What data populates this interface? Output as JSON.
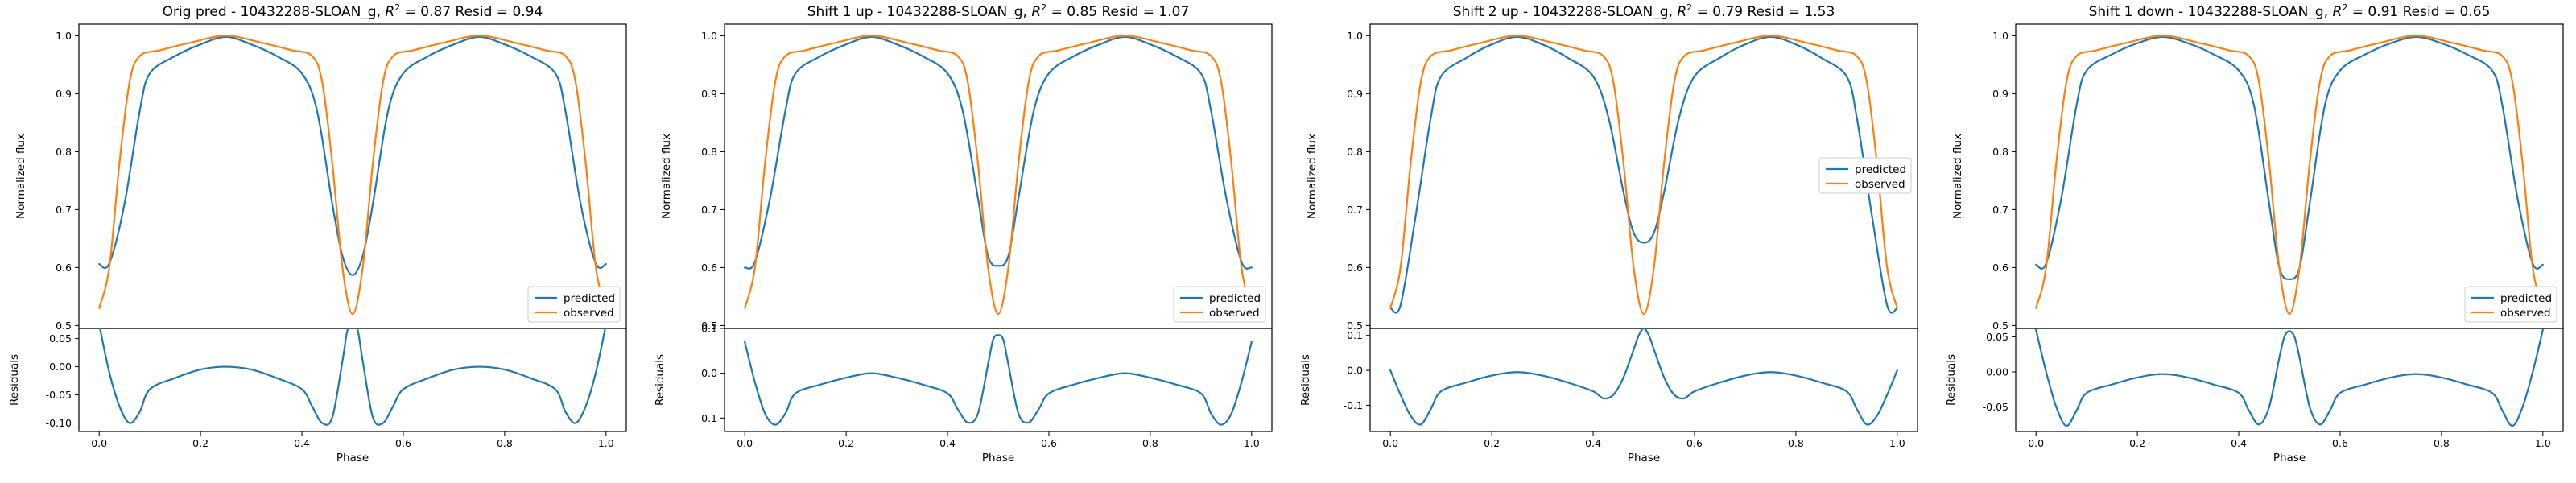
{
  "colors": {
    "predicted": "#1f77b4",
    "observed": "#ff7f0e"
  },
  "chart_data": [
    {
      "type": "line",
      "title": "Orig pred - 10432288-SLOAN_g, R² = 0.87 Resid = 0.94",
      "title_parts": [
        "Orig pred - 10432288-SLOAN_g, ",
        "R",
        "2",
        " = 0.87 Resid = 0.94"
      ],
      "xlabel": "Phase",
      "ylabel": "Normalized flux",
      "resid_ylabel": "Residuals",
      "xlim": [
        -0.04,
        1.04
      ],
      "ylim": [
        0.495,
        1.02
      ],
      "resid_ylim": [
        -0.115,
        0.068
      ],
      "xticks": [
        "0.0",
        "0.2",
        "0.4",
        "0.6",
        "0.8",
        "1.0"
      ],
      "yticks": [
        "0.5",
        "0.6",
        "0.7",
        "0.8",
        "0.9",
        "1.0"
      ],
      "resid_yticks": [
        "-0.10",
        "-0.05",
        "0.00",
        "0.05"
      ],
      "legend_position": "lower right",
      "series": [
        {
          "name": "predicted",
          "x": [
            0.0,
            0.02,
            0.05,
            0.08,
            0.1,
            0.15,
            0.2,
            0.25,
            0.3,
            0.35,
            0.4,
            0.43,
            0.46,
            0.48,
            0.5,
            0.52,
            0.54,
            0.57,
            0.6,
            0.65,
            0.7,
            0.75,
            0.8,
            0.85,
            0.9,
            0.92,
            0.95,
            0.98,
            1.0
          ],
          "y": [
            0.606,
            0.607,
            0.71,
            0.87,
            0.935,
            0.965,
            0.985,
            0.998,
            0.985,
            0.965,
            0.935,
            0.87,
            0.71,
            0.62,
            0.587,
            0.62,
            0.71,
            0.87,
            0.935,
            0.965,
            0.985,
            0.998,
            0.985,
            0.965,
            0.935,
            0.87,
            0.71,
            0.607,
            0.606
          ]
        },
        {
          "name": "observed",
          "x": [
            0.0,
            0.02,
            0.04,
            0.06,
            0.08,
            0.12,
            0.18,
            0.25,
            0.32,
            0.38,
            0.42,
            0.44,
            0.46,
            0.48,
            0.5,
            0.52,
            0.54,
            0.56,
            0.58,
            0.62,
            0.68,
            0.75,
            0.82,
            0.88,
            0.92,
            0.94,
            0.96,
            0.98,
            1.0
          ],
          "y": [
            0.53,
            0.6,
            0.78,
            0.92,
            0.965,
            0.975,
            0.988,
            1.0,
            0.988,
            0.975,
            0.965,
            0.92,
            0.78,
            0.6,
            0.52,
            0.6,
            0.78,
            0.92,
            0.965,
            0.975,
            0.988,
            1.0,
            0.988,
            0.975,
            0.965,
            0.92,
            0.78,
            0.6,
            0.53
          ]
        }
      ],
      "residuals": {
        "x": [
          0.0,
          0.02,
          0.04,
          0.06,
          0.08,
          0.1,
          0.15,
          0.2,
          0.25,
          0.3,
          0.35,
          0.4,
          0.42,
          0.44,
          0.46,
          0.48,
          0.49,
          0.5,
          0.51,
          0.52,
          0.54,
          0.56,
          0.58,
          0.6,
          0.65,
          0.7,
          0.75,
          0.8,
          0.85,
          0.9,
          0.92,
          0.94,
          0.96,
          0.98,
          1.0
        ],
        "y": [
          0.075,
          -0.01,
          -0.07,
          -0.1,
          -0.08,
          -0.04,
          -0.02,
          -0.005,
          0.0,
          -0.005,
          -0.02,
          -0.04,
          -0.07,
          -0.1,
          -0.09,
          0.01,
          0.065,
          0.07,
          0.065,
          0.01,
          -0.09,
          -0.1,
          -0.07,
          -0.04,
          -0.02,
          -0.005,
          0.0,
          -0.005,
          -0.02,
          -0.04,
          -0.08,
          -0.1,
          -0.07,
          -0.01,
          0.075
        ]
      }
    },
    {
      "type": "line",
      "title": "Shift 1 up - 10432288-SLOAN_g, R² = 0.85 Resid = 1.07",
      "title_parts": [
        "Shift 1 up - 10432288-SLOAN_g, ",
        "R",
        "2",
        " = 0.85 Resid = 1.07"
      ],
      "xlabel": "Phase",
      "ylabel": "Normalized flux",
      "resid_ylabel": "Residuals",
      "xlim": [
        -0.04,
        1.04
      ],
      "ylim": [
        0.495,
        1.02
      ],
      "resid_ylim": [
        -0.13,
        0.1
      ],
      "xticks": [
        "0.0",
        "0.2",
        "0.4",
        "0.6",
        "0.8",
        "1.0"
      ],
      "yticks": [
        "0.5",
        "0.6",
        "0.7",
        "0.8",
        "0.9",
        "1.0"
      ],
      "resid_yticks": [
        "-0.1",
        "0.0",
        "0.1"
      ],
      "legend_position": "lower right",
      "series": [
        {
          "name": "predicted",
          "x": [
            0.0,
            0.02,
            0.05,
            0.08,
            0.1,
            0.15,
            0.2,
            0.25,
            0.3,
            0.35,
            0.4,
            0.43,
            0.46,
            0.48,
            0.5,
            0.52,
            0.54,
            0.57,
            0.6,
            0.65,
            0.7,
            0.75,
            0.8,
            0.85,
            0.9,
            0.92,
            0.95,
            0.98,
            1.0
          ],
          "y": [
            0.6,
            0.61,
            0.72,
            0.87,
            0.935,
            0.965,
            0.985,
            0.998,
            0.985,
            0.965,
            0.935,
            0.87,
            0.72,
            0.62,
            0.603,
            0.62,
            0.72,
            0.87,
            0.935,
            0.965,
            0.985,
            0.998,
            0.985,
            0.965,
            0.935,
            0.87,
            0.72,
            0.61,
            0.6
          ]
        },
        {
          "name": "observed",
          "x": [
            0.0,
            0.02,
            0.04,
            0.06,
            0.08,
            0.12,
            0.18,
            0.25,
            0.32,
            0.38,
            0.42,
            0.44,
            0.46,
            0.48,
            0.5,
            0.52,
            0.54,
            0.56,
            0.58,
            0.62,
            0.68,
            0.75,
            0.82,
            0.88,
            0.92,
            0.94,
            0.96,
            0.98,
            1.0
          ],
          "y": [
            0.53,
            0.6,
            0.78,
            0.92,
            0.965,
            0.975,
            0.988,
            1.0,
            0.988,
            0.975,
            0.965,
            0.92,
            0.78,
            0.6,
            0.52,
            0.6,
            0.78,
            0.92,
            0.965,
            0.975,
            0.988,
            1.0,
            0.988,
            0.975,
            0.965,
            0.92,
            0.78,
            0.6,
            0.53
          ]
        }
      ],
      "residuals": {
        "x": [
          0.0,
          0.02,
          0.04,
          0.06,
          0.08,
          0.1,
          0.15,
          0.2,
          0.25,
          0.3,
          0.35,
          0.4,
          0.42,
          0.44,
          0.46,
          0.48,
          0.49,
          0.5,
          0.51,
          0.52,
          0.54,
          0.56,
          0.58,
          0.6,
          0.65,
          0.7,
          0.75,
          0.8,
          0.85,
          0.9,
          0.92,
          0.94,
          0.96,
          0.98,
          1.0
        ],
        "y": [
          0.07,
          -0.02,
          -0.09,
          -0.115,
          -0.09,
          -0.045,
          -0.025,
          -0.01,
          0.0,
          -0.01,
          -0.025,
          -0.045,
          -0.08,
          -0.11,
          -0.09,
          0.02,
          0.075,
          0.085,
          0.075,
          0.02,
          -0.09,
          -0.11,
          -0.08,
          -0.045,
          -0.025,
          -0.01,
          0.0,
          -0.01,
          -0.025,
          -0.045,
          -0.09,
          -0.115,
          -0.09,
          -0.02,
          0.07
        ]
      }
    },
    {
      "type": "line",
      "title": "Shift 2 up - 10432288-SLOAN_g, R² = 0.79 Resid = 1.53",
      "title_parts": [
        "Shift 2 up - 10432288-SLOAN_g, ",
        "R",
        "2",
        " = 0.79 Resid = 1.53"
      ],
      "xlabel": "Phase",
      "ylabel": "Normalized flux",
      "resid_ylabel": "Residuals",
      "xlim": [
        -0.04,
        1.04
      ],
      "ylim": [
        0.495,
        1.02
      ],
      "resid_ylim": [
        -0.175,
        0.12
      ],
      "xticks": [
        "0.0",
        "0.2",
        "0.4",
        "0.6",
        "0.8",
        "1.0"
      ],
      "yticks": [
        "0.5",
        "0.6",
        "0.7",
        "0.8",
        "0.9",
        "1.0"
      ],
      "resid_yticks": [
        "-0.1",
        "0.0",
        "0.1"
      ],
      "legend_position": "center right",
      "series": [
        {
          "name": "predicted",
          "x": [
            0.0,
            0.02,
            0.05,
            0.08,
            0.1,
            0.15,
            0.2,
            0.25,
            0.3,
            0.35,
            0.4,
            0.43,
            0.46,
            0.48,
            0.5,
            0.52,
            0.54,
            0.57,
            0.6,
            0.65,
            0.7,
            0.75,
            0.8,
            0.85,
            0.9,
            0.92,
            0.95,
            0.98,
            1.0
          ],
          "y": [
            0.53,
            0.535,
            0.69,
            0.86,
            0.93,
            0.962,
            0.985,
            0.998,
            0.985,
            0.962,
            0.93,
            0.86,
            0.73,
            0.66,
            0.643,
            0.66,
            0.73,
            0.86,
            0.93,
            0.962,
            0.985,
            0.998,
            0.985,
            0.962,
            0.93,
            0.86,
            0.69,
            0.535,
            0.53
          ]
        },
        {
          "name": "observed",
          "x": [
            0.0,
            0.02,
            0.04,
            0.06,
            0.08,
            0.12,
            0.18,
            0.25,
            0.32,
            0.38,
            0.42,
            0.44,
            0.46,
            0.48,
            0.5,
            0.52,
            0.54,
            0.56,
            0.58,
            0.62,
            0.68,
            0.75,
            0.82,
            0.88,
            0.92,
            0.94,
            0.96,
            0.98,
            1.0
          ],
          "y": [
            0.53,
            0.6,
            0.78,
            0.92,
            0.965,
            0.975,
            0.988,
            1.0,
            0.988,
            0.975,
            0.965,
            0.92,
            0.78,
            0.6,
            0.52,
            0.6,
            0.78,
            0.92,
            0.965,
            0.975,
            0.988,
            1.0,
            0.988,
            0.975,
            0.965,
            0.92,
            0.78,
            0.6,
            0.53
          ]
        }
      ],
      "residuals": {
        "x": [
          0.0,
          0.02,
          0.04,
          0.06,
          0.08,
          0.1,
          0.15,
          0.2,
          0.25,
          0.3,
          0.35,
          0.4,
          0.42,
          0.44,
          0.46,
          0.48,
          0.49,
          0.5,
          0.51,
          0.52,
          0.54,
          0.56,
          0.58,
          0.6,
          0.65,
          0.7,
          0.75,
          0.8,
          0.85,
          0.9,
          0.92,
          0.94,
          0.96,
          0.98,
          1.0
        ],
        "y": [
          0.0,
          -0.07,
          -0.13,
          -0.155,
          -0.11,
          -0.06,
          -0.035,
          -0.015,
          -0.005,
          -0.015,
          -0.035,
          -0.06,
          -0.08,
          -0.07,
          -0.02,
          0.06,
          0.1,
          0.12,
          0.1,
          0.06,
          -0.02,
          -0.07,
          -0.08,
          -0.06,
          -0.035,
          -0.015,
          -0.005,
          -0.015,
          -0.035,
          -0.06,
          -0.11,
          -0.155,
          -0.13,
          -0.07,
          0.0
        ]
      }
    },
    {
      "type": "line",
      "title": "Shift 1 down - 10432288-SLOAN_g, R² = 0.91 Resid = 0.65",
      "title_parts": [
        "Shift 1 down - 10432288-SLOAN_g, ",
        "R",
        "2",
        " = 0.91 Resid = 0.65"
      ],
      "xlabel": "Phase",
      "ylabel": "Normalized flux",
      "resid_ylabel": "Residuals",
      "xlim": [
        -0.04,
        1.04
      ],
      "ylim": [
        0.495,
        1.02
      ],
      "resid_ylim": [
        -0.085,
        0.062
      ],
      "xticks": [
        "0.0",
        "0.2",
        "0.4",
        "0.6",
        "0.8",
        "1.0"
      ],
      "yticks": [
        "0.5",
        "0.6",
        "0.7",
        "0.8",
        "0.9",
        "1.0"
      ],
      "resid_yticks": [
        "-0.05",
        "0.00",
        "0.05"
      ],
      "legend_position": "lower right",
      "series": [
        {
          "name": "predicted",
          "x": [
            0.0,
            0.02,
            0.05,
            0.08,
            0.1,
            0.15,
            0.2,
            0.25,
            0.3,
            0.35,
            0.4,
            0.43,
            0.46,
            0.48,
            0.5,
            0.52,
            0.54,
            0.57,
            0.6,
            0.65,
            0.7,
            0.75,
            0.8,
            0.85,
            0.9,
            0.92,
            0.95,
            0.98,
            1.0
          ],
          "y": [
            0.605,
            0.607,
            0.72,
            0.88,
            0.94,
            0.968,
            0.987,
            0.998,
            0.987,
            0.968,
            0.94,
            0.88,
            0.71,
            0.6,
            0.58,
            0.6,
            0.71,
            0.88,
            0.94,
            0.968,
            0.987,
            0.998,
            0.987,
            0.968,
            0.94,
            0.88,
            0.72,
            0.607,
            0.605
          ]
        },
        {
          "name": "observed",
          "x": [
            0.0,
            0.02,
            0.04,
            0.06,
            0.08,
            0.12,
            0.18,
            0.25,
            0.32,
            0.38,
            0.42,
            0.44,
            0.46,
            0.48,
            0.5,
            0.52,
            0.54,
            0.56,
            0.58,
            0.62,
            0.68,
            0.75,
            0.82,
            0.88,
            0.92,
            0.94,
            0.96,
            0.98,
            1.0
          ],
          "y": [
            0.53,
            0.6,
            0.78,
            0.92,
            0.965,
            0.975,
            0.988,
            1.0,
            0.988,
            0.975,
            0.965,
            0.92,
            0.78,
            0.6,
            0.52,
            0.6,
            0.78,
            0.92,
            0.965,
            0.975,
            0.988,
            1.0,
            0.988,
            0.975,
            0.965,
            0.92,
            0.78,
            0.6,
            0.53
          ]
        }
      ],
      "residuals": {
        "x": [
          0.0,
          0.02,
          0.04,
          0.06,
          0.08,
          0.1,
          0.15,
          0.2,
          0.25,
          0.3,
          0.35,
          0.4,
          0.42,
          0.44,
          0.46,
          0.48,
          0.49,
          0.5,
          0.51,
          0.52,
          0.54,
          0.56,
          0.58,
          0.6,
          0.65,
          0.7,
          0.75,
          0.8,
          0.85,
          0.9,
          0.92,
          0.94,
          0.96,
          0.98,
          1.0
        ],
        "y": [
          0.06,
          0.0,
          -0.05,
          -0.077,
          -0.055,
          -0.03,
          -0.018,
          -0.008,
          -0.003,
          -0.008,
          -0.018,
          -0.03,
          -0.055,
          -0.075,
          -0.05,
          0.02,
          0.05,
          0.058,
          0.05,
          0.02,
          -0.05,
          -0.075,
          -0.055,
          -0.03,
          -0.018,
          -0.008,
          -0.003,
          -0.008,
          -0.018,
          -0.03,
          -0.055,
          -0.077,
          -0.05,
          0.0,
          0.06
        ]
      }
    }
  ]
}
